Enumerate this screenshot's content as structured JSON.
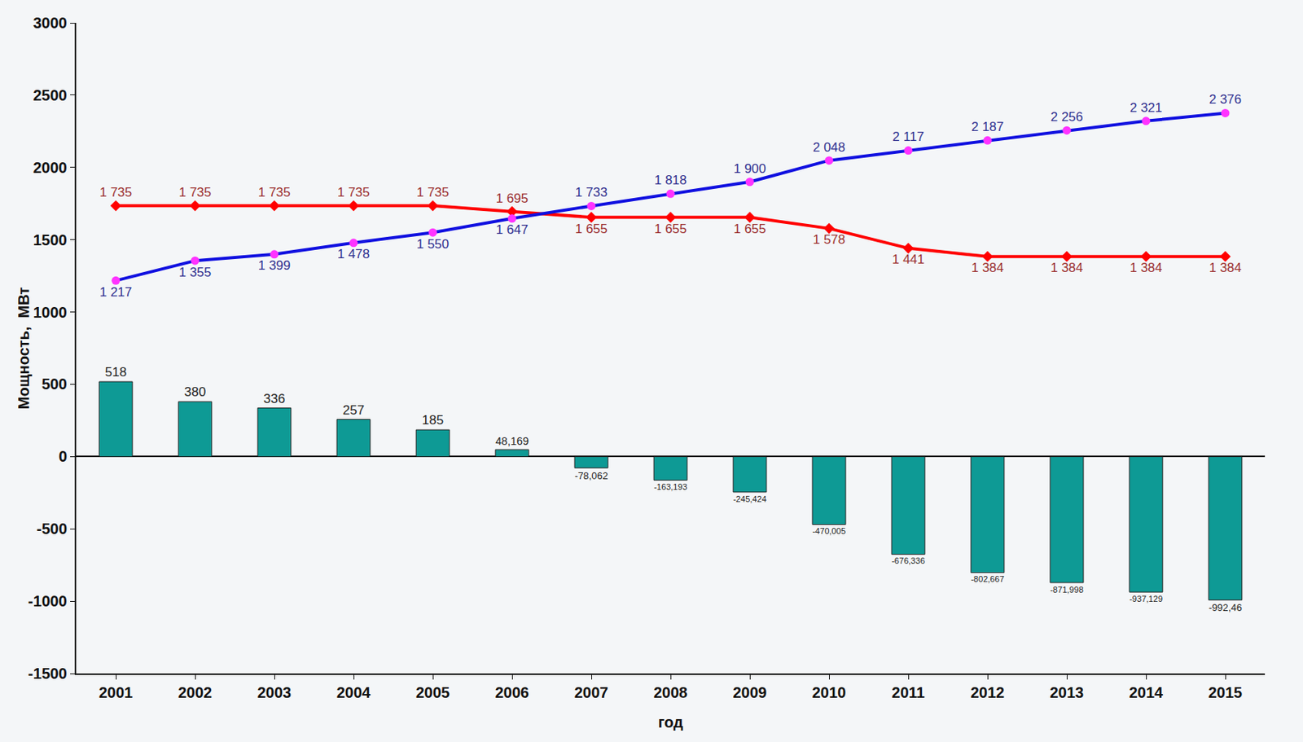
{
  "chart_data": {
    "type": "bar",
    "x_label": "год",
    "y_label": "Мощность,  МВт",
    "categories": [
      "2001",
      "2002",
      "2003",
      "2004",
      "2005",
      "2006",
      "2007",
      "2008",
      "2009",
      "2010",
      "2011",
      "2012",
      "2013",
      "2014",
      "2015"
    ],
    "ylim": [
      -1500,
      3000
    ],
    "yticks": [
      -1500,
      -1000,
      -500,
      0,
      500,
      1000,
      1500,
      2000,
      2500,
      3000
    ],
    "grid": false,
    "data_labels": true,
    "series": [
      {
        "type": "bar",
        "color": "#0e9a95",
        "values": [
          518,
          380,
          336,
          257,
          185,
          48.169,
          -78.062,
          -163.193,
          -245.424,
          -470.005,
          -676.336,
          -802.667,
          -871.998,
          -937.129,
          -992.46
        ],
        "value_labels": [
          "518",
          "380",
          "336",
          "257",
          "185",
          "48,169",
          "-78,062",
          "-163,193",
          "-245,424",
          "-470,005",
          "-676,336",
          "-802,667",
          "-871,998",
          "-937,129",
          "-992,46"
        ]
      },
      {
        "type": "line",
        "color": "#ff0000",
        "marker": "diamond",
        "values": [
          1735,
          1735,
          1735,
          1735,
          1735,
          1695,
          1655,
          1655,
          1655,
          1578,
          1441,
          1384,
          1384,
          1384,
          1384
        ],
        "value_labels": [
          "1 735",
          "1 735",
          "1 735",
          "1 735",
          "1 735",
          "1 695",
          "1 655",
          "1 655",
          "1 655",
          "1 578",
          "1 441",
          "1 384",
          "1 384",
          "1 384",
          "1 384"
        ]
      },
      {
        "type": "line",
        "color": "#1010e0",
        "marker": "circle",
        "values": [
          1217,
          1355,
          1399,
          1478,
          1550,
          1647,
          1733,
          1818,
          1900,
          2048,
          2117,
          2187,
          2256,
          2321,
          2376
        ],
        "value_labels": [
          "1 217",
          "1 355",
          "1 399",
          "1 478",
          "1 550",
          "1 647",
          "1 733",
          "1 818",
          "1 900",
          "2 048",
          "2 117",
          "2 187",
          "2 256",
          "2 321",
          "2 376"
        ]
      }
    ]
  }
}
